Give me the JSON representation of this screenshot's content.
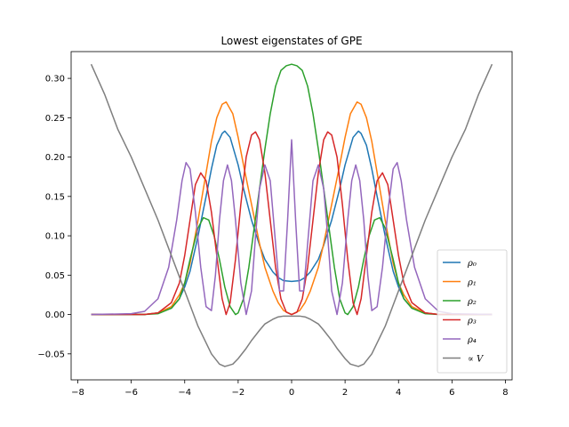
{
  "chart_data": {
    "type": "line",
    "title": "Lowest eigenstates of GPE",
    "xlabel": "",
    "ylabel": "",
    "xlim": [
      -8.25,
      8.25
    ],
    "ylim": [
      -0.083,
      0.334
    ],
    "xticks": [
      -8,
      -6,
      -4,
      -2,
      0,
      2,
      4,
      6,
      8
    ],
    "xtick_labels": [
      "−8",
      "−6",
      "−4",
      "−2",
      "0",
      "2",
      "4",
      "6",
      "8"
    ],
    "yticks": [
      -0.05,
      0.0,
      0.05,
      0.1,
      0.15,
      0.2,
      0.25,
      0.3
    ],
    "ytick_labels": [
      "−0.05",
      "0.00",
      "0.05",
      "0.10",
      "0.15",
      "0.20",
      "0.25",
      "0.30"
    ],
    "grid": false,
    "legend_position": "lower right",
    "series": [
      {
        "name": "ρ₀",
        "color": "#1f77b4",
        "x": [
          -7.5,
          -6.0,
          -5.5,
          -5.0,
          -4.5,
          -4.2,
          -4.0,
          -3.8,
          -3.5,
          -3.2,
          -3.0,
          -2.8,
          -2.6,
          -2.5,
          -2.3,
          -2.0,
          -1.8,
          -1.5,
          -1.2,
          -1.0,
          -0.7,
          -0.5,
          -0.3,
          0.0,
          0.3,
          0.5,
          0.7,
          1.0,
          1.2,
          1.5,
          1.8,
          2.0,
          2.3,
          2.5,
          2.6,
          2.8,
          3.0,
          3.2,
          3.5,
          3.8,
          4.0,
          4.2,
          4.5,
          5.0,
          5.5,
          6.0,
          7.5
        ],
        "y": [
          0.0,
          0.0,
          0.0,
          0.002,
          0.008,
          0.02,
          0.035,
          0.055,
          0.1,
          0.15,
          0.185,
          0.215,
          0.23,
          0.233,
          0.225,
          0.19,
          0.16,
          0.12,
          0.088,
          0.07,
          0.054,
          0.047,
          0.043,
          0.042,
          0.043,
          0.047,
          0.054,
          0.07,
          0.088,
          0.12,
          0.16,
          0.19,
          0.225,
          0.233,
          0.23,
          0.215,
          0.185,
          0.15,
          0.1,
          0.055,
          0.035,
          0.02,
          0.008,
          0.002,
          0.0,
          0.0,
          0.0
        ]
      },
      {
        "name": "ρ₁",
        "color": "#ff7f0e",
        "x": [
          -7.5,
          -6.0,
          -5.5,
          -5.0,
          -4.5,
          -4.2,
          -4.0,
          -3.8,
          -3.5,
          -3.2,
          -3.0,
          -2.8,
          -2.6,
          -2.45,
          -2.2,
          -2.0,
          -1.8,
          -1.5,
          -1.2,
          -1.0,
          -0.7,
          -0.5,
          -0.3,
          0.0,
          0.3,
          0.5,
          0.7,
          1.0,
          1.2,
          1.5,
          1.8,
          2.0,
          2.2,
          2.45,
          2.6,
          2.8,
          3.0,
          3.2,
          3.5,
          3.8,
          4.0,
          4.2,
          4.5,
          5.0,
          5.5,
          6.0,
          7.5
        ],
        "y": [
          0.0,
          0.0,
          0.0,
          0.002,
          0.01,
          0.025,
          0.04,
          0.065,
          0.12,
          0.18,
          0.22,
          0.25,
          0.267,
          0.27,
          0.255,
          0.225,
          0.19,
          0.14,
          0.09,
          0.06,
          0.03,
          0.015,
          0.005,
          0.0,
          0.005,
          0.015,
          0.03,
          0.06,
          0.09,
          0.14,
          0.19,
          0.225,
          0.255,
          0.27,
          0.267,
          0.25,
          0.22,
          0.18,
          0.12,
          0.065,
          0.04,
          0.025,
          0.01,
          0.002,
          0.0,
          0.0,
          0.0
        ]
      },
      {
        "name": "ρ₂",
        "color": "#2ca02c",
        "x": [
          -7.5,
          -6.0,
          -5.5,
          -5.0,
          -4.5,
          -4.2,
          -4.0,
          -3.8,
          -3.5,
          -3.3,
          -3.1,
          -2.9,
          -2.7,
          -2.5,
          -2.3,
          -2.1,
          -2.0,
          -1.8,
          -1.6,
          -1.4,
          -1.2,
          -1.0,
          -0.8,
          -0.6,
          -0.4,
          -0.2,
          0.0,
          0.2,
          0.4,
          0.6,
          0.8,
          1.0,
          1.2,
          1.4,
          1.6,
          1.8,
          2.0,
          2.1,
          2.3,
          2.5,
          2.7,
          2.9,
          3.1,
          3.3,
          3.5,
          3.8,
          4.0,
          4.2,
          4.5,
          5.0,
          5.5,
          6.0,
          7.5
        ],
        "y": [
          0.0,
          0.0,
          0.0,
          0.001,
          0.008,
          0.02,
          0.04,
          0.07,
          0.11,
          0.123,
          0.12,
          0.1,
          0.07,
          0.035,
          0.01,
          0.0,
          0.002,
          0.02,
          0.06,
          0.11,
          0.16,
          0.21,
          0.255,
          0.29,
          0.31,
          0.316,
          0.318,
          0.316,
          0.31,
          0.29,
          0.255,
          0.21,
          0.16,
          0.11,
          0.06,
          0.02,
          0.002,
          0.0,
          0.01,
          0.035,
          0.07,
          0.1,
          0.12,
          0.123,
          0.11,
          0.07,
          0.04,
          0.02,
          0.008,
          0.001,
          0.0,
          0.0,
          0.0
        ]
      },
      {
        "name": "ρ₃",
        "color": "#d62728",
        "x": [
          -7.5,
          -6.0,
          -5.5,
          -5.0,
          -4.5,
          -4.2,
          -4.0,
          -3.8,
          -3.6,
          -3.4,
          -3.2,
          -3.0,
          -2.8,
          -2.6,
          -2.45,
          -2.3,
          -2.1,
          -1.9,
          -1.7,
          -1.5,
          -1.35,
          -1.2,
          -1.0,
          -0.8,
          -0.6,
          -0.4,
          -0.2,
          0.0,
          0.2,
          0.4,
          0.6,
          0.8,
          1.0,
          1.2,
          1.35,
          1.5,
          1.7,
          1.9,
          2.1,
          2.3,
          2.45,
          2.6,
          2.8,
          3.0,
          3.2,
          3.4,
          3.6,
          3.8,
          4.0,
          4.2,
          4.5,
          5.0,
          5.5,
          6.0,
          7.5
        ],
        "y": [
          0.0,
          0.0,
          0.0,
          0.002,
          0.015,
          0.04,
          0.075,
          0.12,
          0.165,
          0.18,
          0.17,
          0.13,
          0.075,
          0.02,
          0.0,
          0.015,
          0.07,
          0.14,
          0.2,
          0.228,
          0.232,
          0.222,
          0.18,
          0.12,
          0.06,
          0.02,
          0.003,
          0.0,
          0.003,
          0.02,
          0.06,
          0.12,
          0.18,
          0.222,
          0.232,
          0.228,
          0.2,
          0.14,
          0.07,
          0.015,
          0.0,
          0.02,
          0.075,
          0.13,
          0.17,
          0.18,
          0.165,
          0.12,
          0.075,
          0.04,
          0.015,
          0.002,
          0.0,
          0.0,
          0.0
        ]
      },
      {
        "name": "ρ₄",
        "color": "#9467bd",
        "x": [
          -7.5,
          -6.0,
          -5.5,
          -5.0,
          -4.6,
          -4.3,
          -4.1,
          -3.95,
          -3.8,
          -3.6,
          -3.4,
          -3.2,
          -3.0,
          -2.85,
          -2.7,
          -2.55,
          -2.4,
          -2.25,
          -2.1,
          -1.9,
          -1.7,
          -1.5,
          -1.35,
          -1.2,
          -1.0,
          -0.8,
          -0.6,
          -0.45,
          -0.3,
          -0.15,
          0.0,
          0.15,
          0.3,
          0.45,
          0.6,
          0.8,
          1.0,
          1.2,
          1.35,
          1.5,
          1.7,
          1.9,
          2.1,
          2.25,
          2.4,
          2.55,
          2.7,
          2.85,
          3.0,
          3.2,
          3.4,
          3.6,
          3.8,
          3.95,
          4.1,
          4.3,
          4.6,
          5.0,
          5.5,
          6.0,
          7.5
        ],
        "y": [
          0.0,
          0.001,
          0.004,
          0.02,
          0.06,
          0.12,
          0.17,
          0.193,
          0.185,
          0.13,
          0.06,
          0.01,
          0.005,
          0.05,
          0.12,
          0.17,
          0.19,
          0.17,
          0.12,
          0.04,
          0.0,
          0.03,
          0.1,
          0.16,
          0.19,
          0.17,
          0.09,
          0.03,
          0.03,
          0.12,
          0.222,
          0.12,
          0.03,
          0.03,
          0.09,
          0.17,
          0.19,
          0.16,
          0.1,
          0.03,
          0.0,
          0.04,
          0.12,
          0.17,
          0.19,
          0.17,
          0.12,
          0.05,
          0.005,
          0.01,
          0.06,
          0.13,
          0.185,
          0.193,
          0.17,
          0.12,
          0.06,
          0.02,
          0.004,
          0.001,
          0.0
        ]
      },
      {
        "name": "∝ V",
        "color": "#7f7f7f",
        "x": [
          -7.5,
          -7.0,
          -6.5,
          -6.0,
          -5.5,
          -5.0,
          -4.5,
          -4.0,
          -3.5,
          -3.0,
          -2.7,
          -2.5,
          -2.2,
          -2.0,
          -1.7,
          -1.5,
          -1.2,
          -1.0,
          -0.7,
          -0.5,
          -0.3,
          0.0,
          0.3,
          0.5,
          0.7,
          1.0,
          1.2,
          1.5,
          1.7,
          2.0,
          2.2,
          2.5,
          2.7,
          3.0,
          3.5,
          4.0,
          4.5,
          5.0,
          5.5,
          6.0,
          6.5,
          7.0,
          7.5
        ],
        "y": [
          0.318,
          0.28,
          0.235,
          0.2,
          0.16,
          0.12,
          0.075,
          0.03,
          -0.015,
          -0.05,
          -0.063,
          -0.066,
          -0.063,
          -0.056,
          -0.043,
          -0.033,
          -0.02,
          -0.012,
          -0.006,
          -0.003,
          -0.002,
          -0.002,
          -0.002,
          -0.003,
          -0.006,
          -0.012,
          -0.02,
          -0.033,
          -0.043,
          -0.056,
          -0.063,
          -0.066,
          -0.063,
          -0.05,
          -0.015,
          0.03,
          0.075,
          0.12,
          0.16,
          0.2,
          0.235,
          0.28,
          0.318
        ]
      }
    ]
  }
}
